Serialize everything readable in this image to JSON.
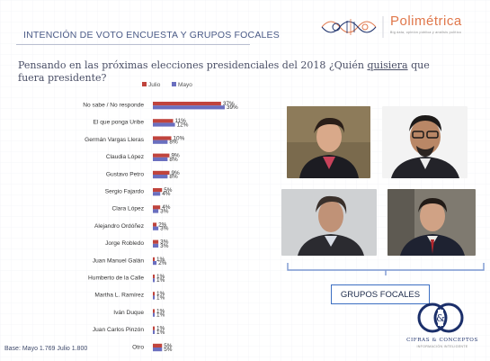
{
  "header": {
    "title": "INTENCIÓN DE VOTO ENCUESTA Y GRUPOS FOCALES",
    "brand": "Polimétrica",
    "brand_tagline": "Big data, opinión pública y análisis político"
  },
  "question": {
    "before": "Pensando en las próximas elecciones presidenciales del 2018 ¿Quién ",
    "emphasis": "quisiera",
    "after": " que fuera presidente?"
  },
  "photos_caption": "GRUPOS FOCALES",
  "pollster": {
    "name": "CIFRAS & CONCEPTOS",
    "tagline": "INFORMACIÓN INTELIGENTE",
    "logo_initials": "C&C"
  },
  "base_note": "Base: Mayo 1.769 Julio 1.800",
  "colors": {
    "julio": "#c0443d",
    "mayo": "#6a6fbf",
    "accent": "#e0774b",
    "brand_blue": "#1b2f6a"
  },
  "chart_data": {
    "type": "bar",
    "orientation": "horizontal",
    "categories": [
      "No sabe / No responde",
      "El que ponga Uribe",
      "Germán Vargas Lleras",
      "Claudia López",
      "Gustavo Petro",
      "Sergio Fajardo",
      "Clara López",
      "Alejandro Ordóñez",
      "Jorge Robledo",
      "Juan Manuel Galán",
      "Humberto de la Calle",
      "Martha L. Ramírez",
      "Iván Duque",
      "Juan Carlos Pinzón",
      "Otro"
    ],
    "series": [
      {
        "name": "Julio",
        "values": [
          37,
          11,
          10,
          9,
          9,
          5,
          4,
          2,
          3,
          1,
          1,
          1,
          1,
          1,
          5
        ],
        "labels": [
          "37%",
          "11%",
          "10%",
          "9%",
          "9%",
          "5%",
          "4%",
          "2%",
          "3%",
          "1%",
          "1%",
          "1%",
          "1%",
          "1%",
          "5%"
        ]
      },
      {
        "name": "Mayo",
        "values": [
          39,
          12,
          8,
          8,
          8,
          4,
          3,
          3,
          3,
          2,
          1,
          1,
          1,
          1,
          5
        ],
        "labels": [
          "39%",
          "12%",
          "8%",
          "8%",
          "8%",
          "4%",
          "3%",
          "3%",
          "3%",
          "2%",
          "1%",
          "1%",
          "1%",
          "1%",
          "5%"
        ]
      }
    ],
    "legend_position": "top",
    "xlim": [
      0,
      40
    ]
  }
}
